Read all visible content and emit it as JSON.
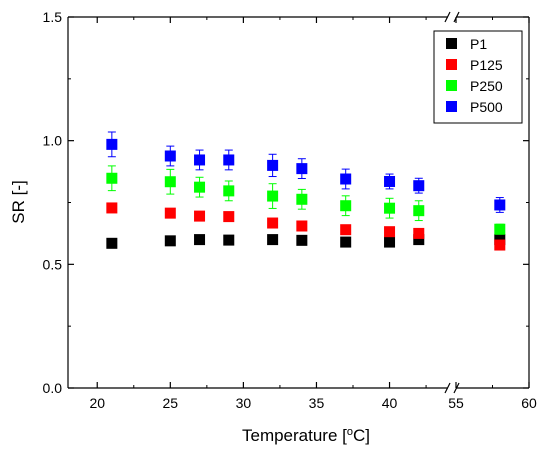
{
  "chart_data": {
    "type": "scatter",
    "title": "",
    "xlabel": "Temperature [",
    "xlabel_unit": "o",
    "xlabel_suffix": "C]",
    "ylabel": "SR [-]",
    "ylim": [
      0.0,
      1.5
    ],
    "y_ticks": [
      "0.0",
      "0.5",
      "1.0",
      "1.5"
    ],
    "x_segments": [
      {
        "range": [
          18,
          44
        ],
        "ticks": [
          20,
          25,
          30,
          35,
          40
        ]
      },
      {
        "range": [
          55,
          60
        ],
        "ticks": [
          55,
          60
        ]
      }
    ],
    "x_ticks_labels": [
      "20",
      "25",
      "30",
      "35",
      "40",
      "55",
      "60"
    ],
    "grid": false,
    "legend_position": "top-right",
    "x": [
      21,
      25,
      27,
      29,
      32,
      34,
      37,
      40,
      42,
      58
    ],
    "series": [
      {
        "name": "P1",
        "color": "#000000",
        "values": [
          0.585,
          0.595,
          0.6,
          0.598,
          0.6,
          0.597,
          0.59,
          0.59,
          0.6,
          0.6
        ],
        "errors": [
          0.008,
          0.008,
          0.008,
          0.008,
          0.008,
          0.008,
          0.008,
          0.008,
          0.008,
          0.008
        ]
      },
      {
        "name": "P125",
        "color": "#ff0000",
        "values": [
          0.728,
          0.707,
          0.695,
          0.693,
          0.667,
          0.655,
          0.64,
          0.632,
          0.625,
          0.578
        ],
        "errors": [
          0.015,
          0.012,
          0.012,
          0.012,
          0.012,
          0.012,
          0.012,
          0.012,
          0.012,
          0.012
        ]
      },
      {
        "name": "P250",
        "color": "#00ff00",
        "values": [
          0.848,
          0.834,
          0.812,
          0.797,
          0.776,
          0.763,
          0.737,
          0.727,
          0.717,
          0.642
        ],
        "errors": [
          0.05,
          0.05,
          0.04,
          0.04,
          0.05,
          0.04,
          0.04,
          0.04,
          0.04,
          0.02
        ]
      },
      {
        "name": "P500",
        "color": "#0000ff",
        "values": [
          0.985,
          0.938,
          0.922,
          0.922,
          0.9,
          0.887,
          0.845,
          0.835,
          0.818,
          0.74
        ],
        "errors": [
          0.05,
          0.04,
          0.04,
          0.04,
          0.045,
          0.04,
          0.04,
          0.03,
          0.03,
          0.03
        ]
      }
    ]
  }
}
